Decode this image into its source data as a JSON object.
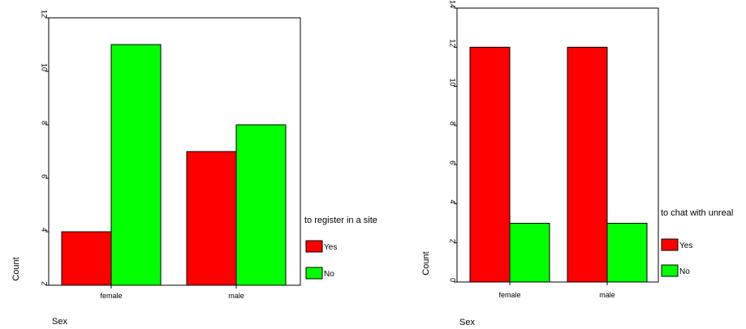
{
  "colors": {
    "yes": "#ff0000",
    "no": "#00ff00",
    "frame": "#000000",
    "background": "#ffffff"
  },
  "chart_data": [
    {
      "type": "bar",
      "title": "",
      "xlabel": "Sex",
      "ylabel": "Count",
      "categories": [
        "female",
        "male"
      ],
      "series": [
        {
          "name": "Yes",
          "color": "#ff0000",
          "values": [
            4,
            7
          ]
        },
        {
          "name": "No",
          "color": "#00ff00",
          "values": [
            11,
            8
          ]
        }
      ],
      "ylim": [
        2,
        12
      ],
      "yticks": [
        2,
        4,
        6,
        8,
        10,
        12
      ],
      "ytick_labels": [
        "2",
        "4",
        "6",
        "8",
        "10",
        "12"
      ],
      "legend_title": "to register in a site",
      "legend_position": "right",
      "grid": false
    },
    {
      "type": "bar",
      "title": "",
      "xlabel": "Sex",
      "ylabel": "Count",
      "categories": [
        "female",
        "male"
      ],
      "series": [
        {
          "name": "Yes",
          "color": "#ff0000",
          "values": [
            12,
            12
          ]
        },
        {
          "name": "No",
          "color": "#00ff00",
          "values": [
            3,
            3
          ]
        }
      ],
      "ylim": [
        0,
        14
      ],
      "yticks": [
        0,
        2,
        4,
        6,
        8,
        10,
        12,
        14
      ],
      "ytick_labels": [
        "0",
        "2",
        "4",
        "6",
        "8",
        "10",
        "12",
        "14"
      ],
      "legend_title": "to chat with unreal",
      "legend_position": "right",
      "grid": false
    }
  ]
}
